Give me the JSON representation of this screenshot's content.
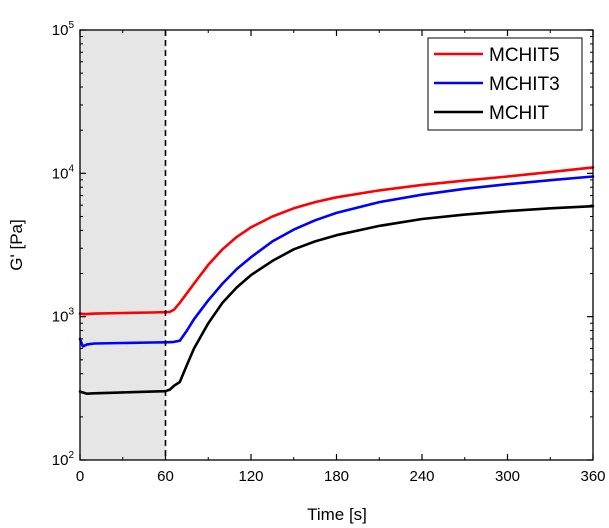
{
  "chart_data": {
    "type": "line",
    "xlabel": "Time [s]",
    "ylabel": "G' [Pa]",
    "xlim": [
      0,
      360
    ],
    "ylim": [
      100,
      100000
    ],
    "yscale": "log",
    "x_ticks": [
      "0",
      "60",
      "120",
      "180",
      "240",
      "300",
      "360"
    ],
    "y_ticks": [
      {
        "base": "10",
        "exp": "2"
      },
      {
        "base": "10",
        "exp": "3"
      },
      {
        "base": "10",
        "exp": "4"
      },
      {
        "base": "10",
        "exp": "5"
      }
    ],
    "shaded_region": {
      "x": [
        0,
        60
      ],
      "color": "#e6e6e6"
    },
    "vertical_line": {
      "x": 60,
      "style": "dashed"
    },
    "legend_position": "top-right",
    "series": [
      {
        "name": "MCHIT5",
        "color": "#ff0000",
        "x": [
          0,
          3,
          10,
          30,
          50,
          60,
          63,
          66,
          70,
          80,
          90,
          100,
          110,
          120,
          135,
          150,
          165,
          180,
          210,
          240,
          270,
          300,
          330,
          360
        ],
        "y": [
          1050,
          1040,
          1050,
          1060,
          1070,
          1075,
          1080,
          1120,
          1250,
          1700,
          2300,
          2950,
          3600,
          4200,
          5000,
          5700,
          6300,
          6800,
          7600,
          8300,
          8900,
          9500,
          10200,
          11000
        ]
      },
      {
        "name": "MCHIT3",
        "color": "#0000ff",
        "x": [
          0,
          2,
          5,
          10,
          30,
          50,
          60,
          65,
          70,
          75,
          80,
          90,
          100,
          110,
          120,
          135,
          150,
          165,
          180,
          210,
          240,
          270,
          300,
          330,
          360
        ],
        "y": [
          700,
          620,
          640,
          650,
          655,
          660,
          662,
          665,
          680,
          800,
          960,
          1300,
          1700,
          2150,
          2600,
          3350,
          4050,
          4700,
          5300,
          6300,
          7100,
          7800,
          8400,
          8950,
          9500
        ]
      },
      {
        "name": "MCHIT",
        "color": "#000000",
        "x": [
          0,
          5,
          10,
          30,
          50,
          60,
          63,
          66,
          70,
          75,
          80,
          90,
          100,
          110,
          120,
          135,
          150,
          165,
          180,
          210,
          240,
          270,
          300,
          330,
          360
        ],
        "y": [
          300,
          290,
          292,
          296,
          300,
          302,
          310,
          330,
          350,
          460,
          600,
          900,
          1250,
          1600,
          1950,
          2450,
          2950,
          3350,
          3700,
          4300,
          4800,
          5150,
          5450,
          5700,
          5900
        ]
      }
    ]
  }
}
